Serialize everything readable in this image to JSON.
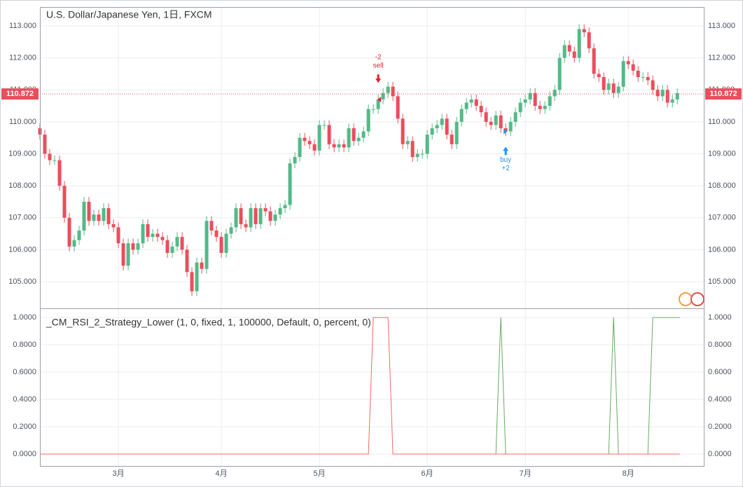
{
  "chart_data": [
    {
      "type": "candlestick",
      "title": "U.S. Dollar/Japanese Yen, 1日, FXCM",
      "up_color": "#53b987",
      "down_color": "#eb4d5c",
      "candles": [
        [
          109.8,
          109.95,
          109.45,
          109.6
        ],
        [
          109.6,
          109.75,
          108.85,
          109.0
        ],
        [
          109.0,
          109.15,
          108.65,
          108.8
        ],
        [
          108.8,
          108.95,
          108.65,
          108.8
        ],
        [
          108.8,
          108.95,
          107.85,
          108.0
        ],
        [
          108.0,
          108.15,
          106.85,
          107.0
        ],
        [
          107.0,
          107.15,
          105.95,
          106.1
        ],
        [
          106.1,
          106.45,
          105.95,
          106.3
        ],
        [
          106.3,
          106.75,
          106.15,
          106.6
        ],
        [
          106.6,
          107.65,
          106.45,
          107.5
        ],
        [
          107.5,
          107.65,
          106.75,
          106.9
        ],
        [
          106.9,
          107.25,
          106.75,
          107.1
        ],
        [
          107.1,
          107.25,
          106.75,
          106.9
        ],
        [
          106.9,
          107.45,
          106.75,
          107.3
        ],
        [
          107.3,
          107.45,
          106.65,
          106.8
        ],
        [
          106.8,
          106.95,
          106.55,
          106.7
        ],
        [
          106.7,
          106.85,
          106.05,
          106.2
        ],
        [
          106.2,
          106.35,
          105.35,
          105.5
        ],
        [
          105.5,
          106.35,
          105.35,
          106.2
        ],
        [
          106.2,
          106.35,
          105.85,
          106.0
        ],
        [
          106.0,
          106.35,
          105.85,
          106.2
        ],
        [
          106.2,
          106.95,
          106.05,
          106.8
        ],
        [
          106.8,
          106.95,
          106.25,
          106.4
        ],
        [
          106.4,
          106.65,
          106.25,
          106.5
        ],
        [
          106.5,
          106.65,
          106.25,
          106.4
        ],
        [
          106.4,
          106.55,
          106.15,
          106.3
        ],
        [
          106.3,
          106.45,
          105.75,
          105.9
        ],
        [
          105.9,
          106.25,
          105.75,
          106.1
        ],
        [
          106.1,
          106.55,
          105.95,
          106.4
        ],
        [
          106.4,
          106.55,
          105.85,
          106.0
        ],
        [
          106.0,
          106.15,
          105.15,
          105.3
        ],
        [
          105.3,
          105.45,
          104.55,
          104.7
        ],
        [
          104.7,
          105.75,
          104.55,
          105.6
        ],
        [
          105.6,
          105.75,
          105.25,
          105.4
        ],
        [
          105.4,
          107.05,
          105.25,
          106.9
        ],
        [
          106.9,
          107.05,
          106.45,
          106.6
        ],
        [
          106.6,
          106.75,
          106.25,
          106.4
        ],
        [
          106.4,
          106.55,
          105.75,
          105.9
        ],
        [
          105.9,
          106.65,
          105.75,
          106.5
        ],
        [
          106.5,
          106.85,
          106.35,
          106.7
        ],
        [
          106.7,
          107.45,
          106.55,
          107.3
        ],
        [
          107.3,
          107.45,
          106.65,
          106.8
        ],
        [
          106.8,
          106.95,
          106.55,
          106.7
        ],
        [
          106.7,
          107.45,
          106.55,
          107.3
        ],
        [
          107.3,
          107.45,
          106.65,
          106.8
        ],
        [
          106.8,
          107.45,
          106.65,
          107.3
        ],
        [
          107.3,
          107.45,
          107.05,
          107.2
        ],
        [
          107.2,
          107.35,
          106.75,
          106.9
        ],
        [
          106.9,
          107.25,
          106.75,
          107.1
        ],
        [
          107.1,
          107.45,
          106.95,
          107.3
        ],
        [
          107.3,
          107.55,
          107.15,
          107.4
        ],
        [
          107.4,
          108.85,
          107.25,
          108.7
        ],
        [
          108.7,
          109.05,
          108.55,
          108.9
        ],
        [
          108.9,
          109.65,
          108.75,
          109.5
        ],
        [
          109.5,
          109.65,
          109.25,
          109.4
        ],
        [
          109.4,
          109.55,
          109.15,
          109.3
        ],
        [
          109.3,
          109.45,
          108.95,
          109.1
        ],
        [
          109.1,
          110.05,
          108.95,
          109.9
        ],
        [
          109.9,
          110.05,
          109.75,
          109.9
        ],
        [
          109.9,
          110.05,
          109.15,
          109.3
        ],
        [
          109.3,
          109.45,
          109.05,
          109.2
        ],
        [
          109.2,
          109.45,
          109.05,
          109.3
        ],
        [
          109.3,
          109.45,
          109.05,
          109.2
        ],
        [
          109.2,
          109.95,
          109.05,
          109.8
        ],
        [
          109.8,
          109.95,
          109.25,
          109.4
        ],
        [
          109.4,
          109.65,
          109.25,
          109.5
        ],
        [
          109.5,
          109.85,
          109.35,
          109.7
        ],
        [
          109.7,
          110.55,
          109.55,
          110.4
        ],
        [
          110.4,
          110.55,
          110.25,
          110.4
        ],
        [
          110.4,
          110.85,
          110.25,
          110.7
        ],
        [
          110.7,
          111.05,
          110.55,
          110.9
        ],
        [
          110.9,
          111.25,
          110.75,
          111.1
        ],
        [
          111.1,
          111.25,
          110.65,
          110.8
        ],
        [
          110.8,
          110.95,
          109.95,
          110.1
        ],
        [
          110.1,
          110.25,
          109.15,
          109.3
        ],
        [
          109.3,
          109.55,
          109.15,
          109.4
        ],
        [
          109.4,
          109.55,
          108.75,
          108.9
        ],
        [
          108.9,
          109.15,
          108.75,
          109.0
        ],
        [
          109.0,
          109.15,
          108.85,
          109.0
        ],
        [
          109.0,
          109.75,
          108.85,
          109.6
        ],
        [
          109.6,
          109.95,
          109.45,
          109.8
        ],
        [
          109.8,
          110.05,
          109.65,
          109.9
        ],
        [
          109.9,
          110.25,
          109.75,
          110.1
        ],
        [
          110.1,
          110.25,
          109.45,
          109.6
        ],
        [
          109.6,
          109.75,
          109.15,
          109.3
        ],
        [
          109.3,
          110.15,
          109.15,
          110.0
        ],
        [
          110.0,
          110.55,
          109.85,
          110.4
        ],
        [
          110.4,
          110.75,
          110.25,
          110.6
        ],
        [
          110.6,
          110.85,
          110.45,
          110.7
        ],
        [
          110.7,
          110.85,
          110.35,
          110.5
        ],
        [
          110.5,
          110.65,
          110.15,
          110.3
        ],
        [
          110.3,
          110.45,
          109.85,
          110.0
        ],
        [
          110.0,
          110.15,
          109.75,
          109.9
        ],
        [
          109.9,
          110.35,
          109.75,
          110.2
        ],
        [
          110.2,
          110.35,
          109.65,
          109.8
        ],
        [
          109.8,
          109.95,
          109.55,
          109.7
        ],
        [
          109.7,
          110.15,
          109.55,
          110.0
        ],
        [
          110.0,
          110.45,
          109.85,
          110.3
        ],
        [
          110.3,
          110.75,
          110.15,
          110.6
        ],
        [
          110.6,
          110.85,
          110.45,
          110.7
        ],
        [
          110.7,
          111.05,
          110.55,
          110.9
        ],
        [
          110.9,
          111.05,
          110.35,
          110.5
        ],
        [
          110.5,
          110.65,
          110.25,
          110.4
        ],
        [
          110.4,
          110.65,
          110.25,
          110.5
        ],
        [
          110.5,
          110.95,
          110.35,
          110.8
        ],
        [
          110.8,
          111.15,
          110.65,
          111.0
        ],
        [
          111.0,
          112.15,
          110.85,
          112.0
        ],
        [
          112.0,
          112.55,
          111.85,
          112.4
        ],
        [
          112.4,
          112.55,
          112.05,
          112.2
        ],
        [
          112.2,
          112.35,
          111.85,
          112.0
        ],
        [
          112.0,
          113.05,
          111.85,
          112.9
        ],
        [
          112.9,
          113.05,
          112.65,
          112.8
        ],
        [
          112.8,
          112.95,
          112.15,
          112.3
        ],
        [
          112.3,
          112.45,
          111.35,
          111.5
        ],
        [
          111.5,
          111.65,
          111.25,
          111.4
        ],
        [
          111.4,
          111.55,
          110.85,
          111.0
        ],
        [
          111.0,
          111.35,
          110.85,
          111.2
        ],
        [
          111.2,
          111.35,
          110.75,
          110.9
        ],
        [
          110.9,
          111.25,
          110.75,
          111.1
        ],
        [
          111.1,
          112.05,
          110.95,
          111.9
        ],
        [
          111.9,
          112.05,
          111.65,
          111.8
        ],
        [
          111.8,
          111.95,
          111.45,
          111.6
        ],
        [
          111.6,
          111.75,
          111.25,
          111.4
        ],
        [
          111.4,
          111.55,
          111.25,
          111.4
        ],
        [
          111.4,
          111.55,
          111.15,
          111.3
        ],
        [
          111.3,
          111.45,
          110.85,
          111.0
        ],
        [
          111.0,
          111.15,
          110.65,
          110.8
        ],
        [
          110.8,
          111.15,
          110.65,
          111.0
        ],
        [
          111.0,
          111.15,
          110.45,
          110.6
        ],
        [
          110.6,
          110.85,
          110.45,
          110.7
        ],
        [
          110.7,
          111.05,
          110.55,
          110.9
        ]
      ],
      "xlim": [
        0,
        135.4
      ],
      "ylim": [
        104.167,
        113.592
      ],
      "yticks": [
        {
          "value": 105,
          "label": "105.000"
        },
        {
          "value": 106,
          "label": "106.000"
        },
        {
          "value": 107,
          "label": "107.000"
        },
        {
          "value": 108,
          "label": "108.000"
        },
        {
          "value": 109,
          "label": "109.000"
        },
        {
          "value": 110,
          "label": "110.000"
        },
        {
          "value": 111,
          "label": "111.000"
        },
        {
          "value": 112,
          "label": "112.000"
        },
        {
          "value": 113,
          "label": "113.000"
        }
      ],
      "last_price": {
        "value": 110.872,
        "label": "110.872"
      },
      "signals": [
        {
          "x": 69,
          "side": "sell",
          "color": "#e0212b",
          "labels": [
            "-2",
            "sell"
          ]
        },
        {
          "x": 95,
          "side": "buy",
          "color": "#2196f3",
          "labels": [
            "buy",
            "+2"
          ]
        }
      ],
      "grid": true
    },
    {
      "type": "line",
      "title": "_CM_RSI_2_Strategy_Lower (1, 0, fixed, 1, 100000, Default, 0, percent, 0)",
      "series": [
        {
          "color": "#6aa86a",
          "x": [
            93,
            94,
            95,
            116,
            117,
            118,
            124,
            125,
            130.5
          ],
          "values": [
            0,
            1,
            0,
            0,
            1,
            0,
            0,
            1,
            1
          ]
        },
        {
          "color": "#ef6a63",
          "x": [
            0,
            67,
            68,
            71,
            72,
            130.5
          ],
          "values": [
            0,
            0,
            1,
            1,
            0,
            0
          ]
        }
      ],
      "xlim": [
        0,
        135.4
      ],
      "ylim": [
        -0.087,
        1.067
      ],
      "yticks": [
        {
          "value": 0,
          "label": "0.0000"
        },
        {
          "value": 0.2,
          "label": "0.2000"
        },
        {
          "value": 0.4,
          "label": "0.4000"
        },
        {
          "value": 0.6,
          "label": "0.6000"
        },
        {
          "value": 0.8,
          "label": "0.8000"
        },
        {
          "value": 1,
          "label": "1.0000"
        }
      ],
      "xticks": [
        {
          "value": 16,
          "label": "3月"
        },
        {
          "value": 37,
          "label": "4月"
        },
        {
          "value": 57,
          "label": "5月"
        },
        {
          "value": 79,
          "label": "6月"
        },
        {
          "value": 99,
          "label": "7月"
        },
        {
          "value": 120,
          "label": "8月"
        }
      ],
      "grid": true
    }
  ]
}
